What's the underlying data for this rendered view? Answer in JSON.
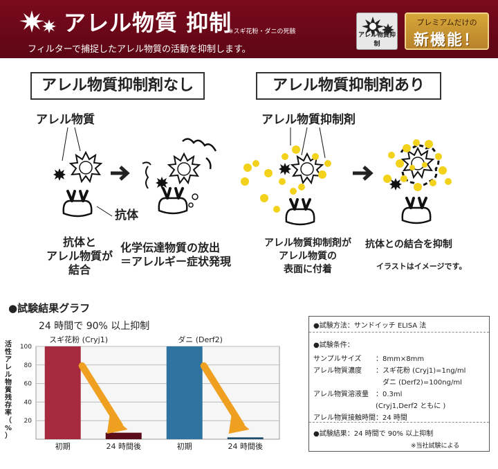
{
  "header": {
    "title": "アレル物質 抑制",
    "note": "※スギ花粉・ダニの死骸",
    "subtitle": "フィルターで捕捉したアレル物質の活動を抑制します。",
    "badge_label": "アレル物質抑制",
    "premium_line1": "プレミアムだけの",
    "premium_line2": "新機能！"
  },
  "colors": {
    "header_bg": "#6b0818",
    "bar_cedar": "#a52a3d",
    "bar_mite": "#2f74a0",
    "arrow": "#f0a020",
    "yellow_dot": "#f2d21a"
  },
  "left_panel": {
    "title": "アレル物質抑制剤なし",
    "allergen": "アレル物質",
    "antibody": "抗体",
    "caption1": [
      "抗体と",
      "アレル物質が",
      "結合"
    ],
    "caption2": [
      "化学伝達物質の放出",
      "＝アレルギー症状発現"
    ]
  },
  "right_panel": {
    "title": "アレル物質抑制剤あり",
    "suppressor": "アレル物質抑制剤",
    "caption1": [
      "アレル物質抑制剤が",
      "アレル物質の",
      "表面に付着"
    ],
    "caption2": "抗体との結合を抑制",
    "note": "イラストはイメージです。"
  },
  "graph": {
    "title": "●試験結果グラフ",
    "subtitle": "24 時間で 90% 以上抑制"
  },
  "chart_data": {
    "type": "bar",
    "ylabel": "活性アレル物質残存率（%）",
    "ylim": [
      0,
      100
    ],
    "yticks": [
      20,
      40,
      60,
      80,
      100
    ],
    "groups": [
      {
        "name": "スギ花粉 (Cryj1)",
        "categories": [
          "初期",
          "24 時間後"
        ],
        "values": [
          100,
          7
        ],
        "color": "#a52a3d"
      },
      {
        "name": "ダニ (Derf2)",
        "categories": [
          "初期",
          "24 時間後"
        ],
        "values": [
          100,
          2
        ],
        "color": "#2f74a0"
      }
    ]
  },
  "conditions": {
    "method": "●試験方法：サンドイッチ ELISA 法",
    "cond_title": "●試験条件：",
    "rows": [
      [
        "サンプルサイズ",
        "：8mm×8mm"
      ],
      [
        "アレル物質濃度",
        "：スギ花粉 (Cryj1)=1ng/ml"
      ],
      [
        "",
        "　ダニ (Derf2)=100ng/ml"
      ],
      [
        "アレル物質溶液量",
        "：0.3ml"
      ],
      [
        "",
        "(Cryj1,Derf2 ともに )"
      ],
      [
        "アレル物質接触時間",
        "：24 時間"
      ]
    ],
    "result": "●試験結果：24 時間で 90% 以上抑制",
    "footnote": "※当社試験による"
  }
}
